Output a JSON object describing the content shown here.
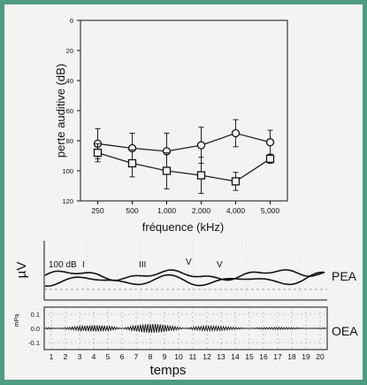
{
  "colors": {
    "frame": "#4f9a82",
    "panel": "#f3f4f1",
    "ink": "#111111"
  },
  "chart_data": [
    {
      "type": "line",
      "xlabel": "fréquence (kHz)",
      "ylabel": "perte auditive (dB)",
      "categories": [
        "250",
        "500",
        "1,000",
        "2,000",
        "4,000",
        "5,000"
      ],
      "ylim": [
        0,
        120
      ],
      "y_inverted": true,
      "yticks": [
        "0",
        "20",
        "40",
        "60",
        "80",
        "100",
        "120"
      ],
      "grid": false,
      "series": [
        {
          "marker": "circle",
          "values": [
            82,
            85,
            87,
            83,
            75,
            81
          ],
          "error": [
            10,
            10,
            12,
            12,
            9,
            8
          ]
        },
        {
          "marker": "square",
          "values": [
            88,
            95,
            100,
            103,
            107,
            92
          ],
          "error": [
            6,
            9,
            12,
            12,
            6,
            3
          ]
        }
      ]
    },
    {
      "type": "line",
      "ylabel": "µV",
      "annotation_level": "100 dB",
      "wave_labels": [
        "I",
        "III",
        "V",
        "V"
      ],
      "right_label": "PEA"
    },
    {
      "type": "line",
      "ylabel": "mPa",
      "xlabel": "temps",
      "yticks": [
        "0.1",
        "0.0",
        "-0.1"
      ],
      "xticks": [
        "1",
        "2",
        "3",
        "4",
        "5",
        "6",
        "7",
        "8",
        "9",
        "10",
        "11",
        "12",
        "13",
        "14",
        "15",
        "16",
        "17",
        "18",
        "19",
        "20"
      ],
      "right_label": "OEA"
    }
  ]
}
